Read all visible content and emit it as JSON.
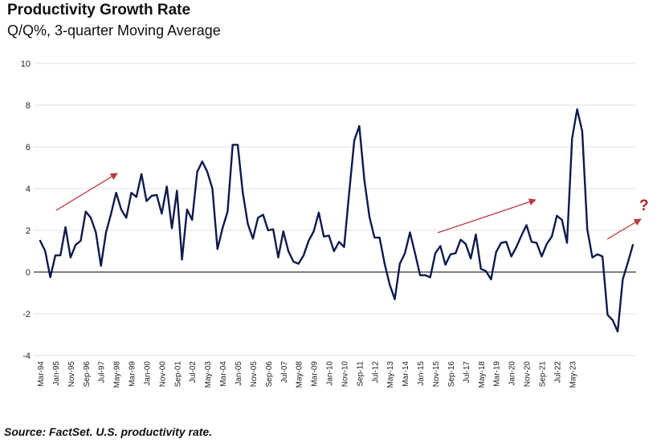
{
  "title": "Productivity Growth Rate",
  "subtitle": "Q/Q%, 3-quarter Moving Average",
  "source": "Source: FactSet. U.S. productivity rate.",
  "annotation_mark": "?",
  "colors": {
    "line": "#0d1b4c",
    "arrow": "#c0393b",
    "grid": "#d9d9d9",
    "question": "#b22222"
  },
  "chart_data": {
    "type": "line",
    "title": "Productivity Growth Rate",
    "subtitle": "Q/Q%, 3-quarter Moving Average",
    "xlabel": "",
    "ylabel": "",
    "ylim": [
      -4,
      10
    ],
    "yticks": [
      -4,
      -2,
      0,
      2,
      4,
      6,
      8,
      10
    ],
    "grid": true,
    "x_tick_labels": [
      "Mar-94",
      "Jan-95",
      "Nov-95",
      "Sep-96",
      "Jul-97",
      "May-98",
      "Mar-99",
      "Jan-00",
      "Nov-00",
      "Sep-01",
      "Jul-02",
      "May-03",
      "Mar-04",
      "Jan-05",
      "Nov-05",
      "Sep-06",
      "Jul-07",
      "May-08",
      "Mar-09",
      "Jan-10",
      "Nov-10",
      "Sep-11",
      "Jul-12",
      "May-13",
      "Mar-14",
      "Jan-15",
      "Nov-15",
      "Sep-16",
      "Jul-17",
      "May-18",
      "Mar-19",
      "Jan-20",
      "Nov-20",
      "Sep-21",
      "Jul-22",
      "May-23"
    ],
    "series": [
      {
        "values": [
          1.5,
          1.0,
          -0.25,
          0.8,
          0.8,
          2.15,
          0.7,
          1.3,
          1.5,
          2.9,
          2.6,
          1.9,
          0.3,
          1.9,
          2.8,
          3.8,
          3.0,
          2.6,
          3.8,
          3.6,
          4.7,
          3.4,
          3.65,
          3.7,
          2.8,
          4.1,
          2.1,
          3.9,
          0.6,
          3.0,
          2.5,
          4.8,
          5.3,
          4.8,
          4.0,
          1.1,
          2.1,
          2.9,
          6.1,
          6.1,
          3.8,
          2.3,
          1.6,
          2.6,
          2.75,
          2.0,
          2.05,
          0.7,
          1.95,
          1.0,
          0.5,
          0.4,
          0.8,
          1.5,
          1.95,
          2.85,
          1.7,
          1.75,
          1.0,
          1.45,
          1.2,
          3.8,
          6.3,
          7.0,
          4.4,
          2.65,
          1.65,
          1.65,
          0.4,
          -0.6,
          -1.3,
          0.4,
          0.9,
          1.9,
          0.9,
          -0.15,
          -0.15,
          -0.25,
          0.9,
          1.25,
          0.35,
          0.85,
          0.9,
          1.55,
          1.35,
          0.65,
          1.8,
          0.15,
          0.05,
          -0.35,
          0.95,
          1.4,
          1.45,
          0.75,
          1.2,
          1.75,
          2.25,
          1.45,
          1.4,
          0.75,
          1.35,
          1.7,
          2.7,
          2.5,
          1.4,
          6.4,
          7.8,
          6.75,
          2.05,
          0.7,
          0.85,
          0.75,
          -2.05,
          -2.3,
          -2.85,
          -0.35,
          0.45,
          1.3
        ]
      }
    ]
  }
}
